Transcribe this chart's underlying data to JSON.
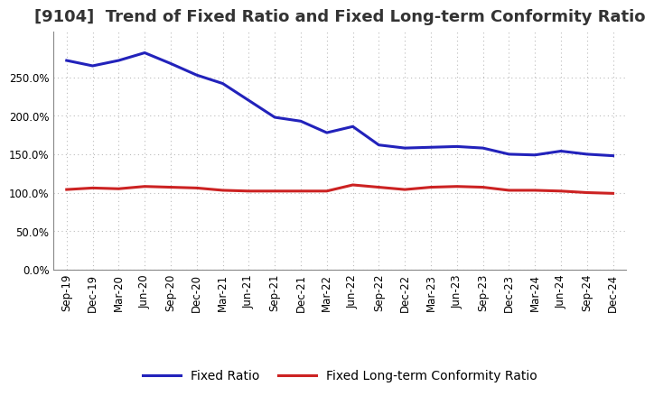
{
  "title": "[9104]  Trend of Fixed Ratio and Fixed Long-term Conformity Ratio",
  "x_labels": [
    "Sep-19",
    "Dec-19",
    "Mar-20",
    "Jun-20",
    "Sep-20",
    "Dec-20",
    "Mar-21",
    "Jun-21",
    "Sep-21",
    "Dec-21",
    "Mar-22",
    "Jun-22",
    "Sep-22",
    "Dec-22",
    "Mar-23",
    "Jun-23",
    "Sep-23",
    "Dec-23",
    "Mar-24",
    "Jun-24",
    "Sep-24",
    "Dec-24"
  ],
  "fixed_ratio": [
    2.72,
    2.65,
    2.72,
    2.82,
    2.68,
    2.53,
    2.42,
    2.2,
    1.98,
    1.93,
    1.78,
    1.86,
    1.62,
    1.58,
    1.59,
    1.6,
    1.58,
    1.5,
    1.49,
    1.54,
    1.5,
    1.48
  ],
  "fixed_lt_ratio": [
    1.04,
    1.06,
    1.05,
    1.08,
    1.07,
    1.06,
    1.03,
    1.02,
    1.02,
    1.02,
    1.02,
    1.1,
    1.07,
    1.04,
    1.07,
    1.08,
    1.07,
    1.03,
    1.03,
    1.02,
    1.0,
    0.99
  ],
  "fixed_ratio_color": "#2222bb",
  "fixed_lt_ratio_color": "#cc2222",
  "background_color": "#ffffff",
  "grid_color": "#bbbbbb",
  "ylim": [
    0.0,
    3.1
  ],
  "yticks": [
    0.0,
    0.5,
    1.0,
    1.5,
    2.0,
    2.5
  ],
  "legend_fixed": "Fixed Ratio",
  "legend_lt": "Fixed Long-term Conformity Ratio",
  "title_fontsize": 13,
  "axis_fontsize": 8.5,
  "legend_fontsize": 10
}
